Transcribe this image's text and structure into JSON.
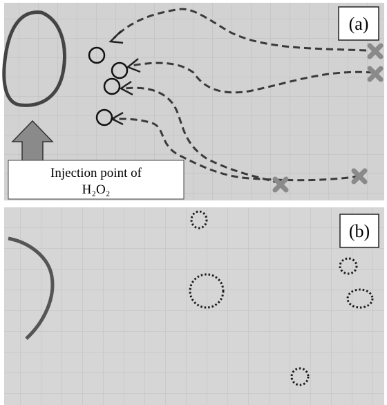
{
  "panels": [
    {
      "label": "(a)"
    },
    {
      "label": "(b)"
    }
  ],
  "annotation": {
    "line1": "Injection point of",
    "line2": "H₂O₂"
  }
}
